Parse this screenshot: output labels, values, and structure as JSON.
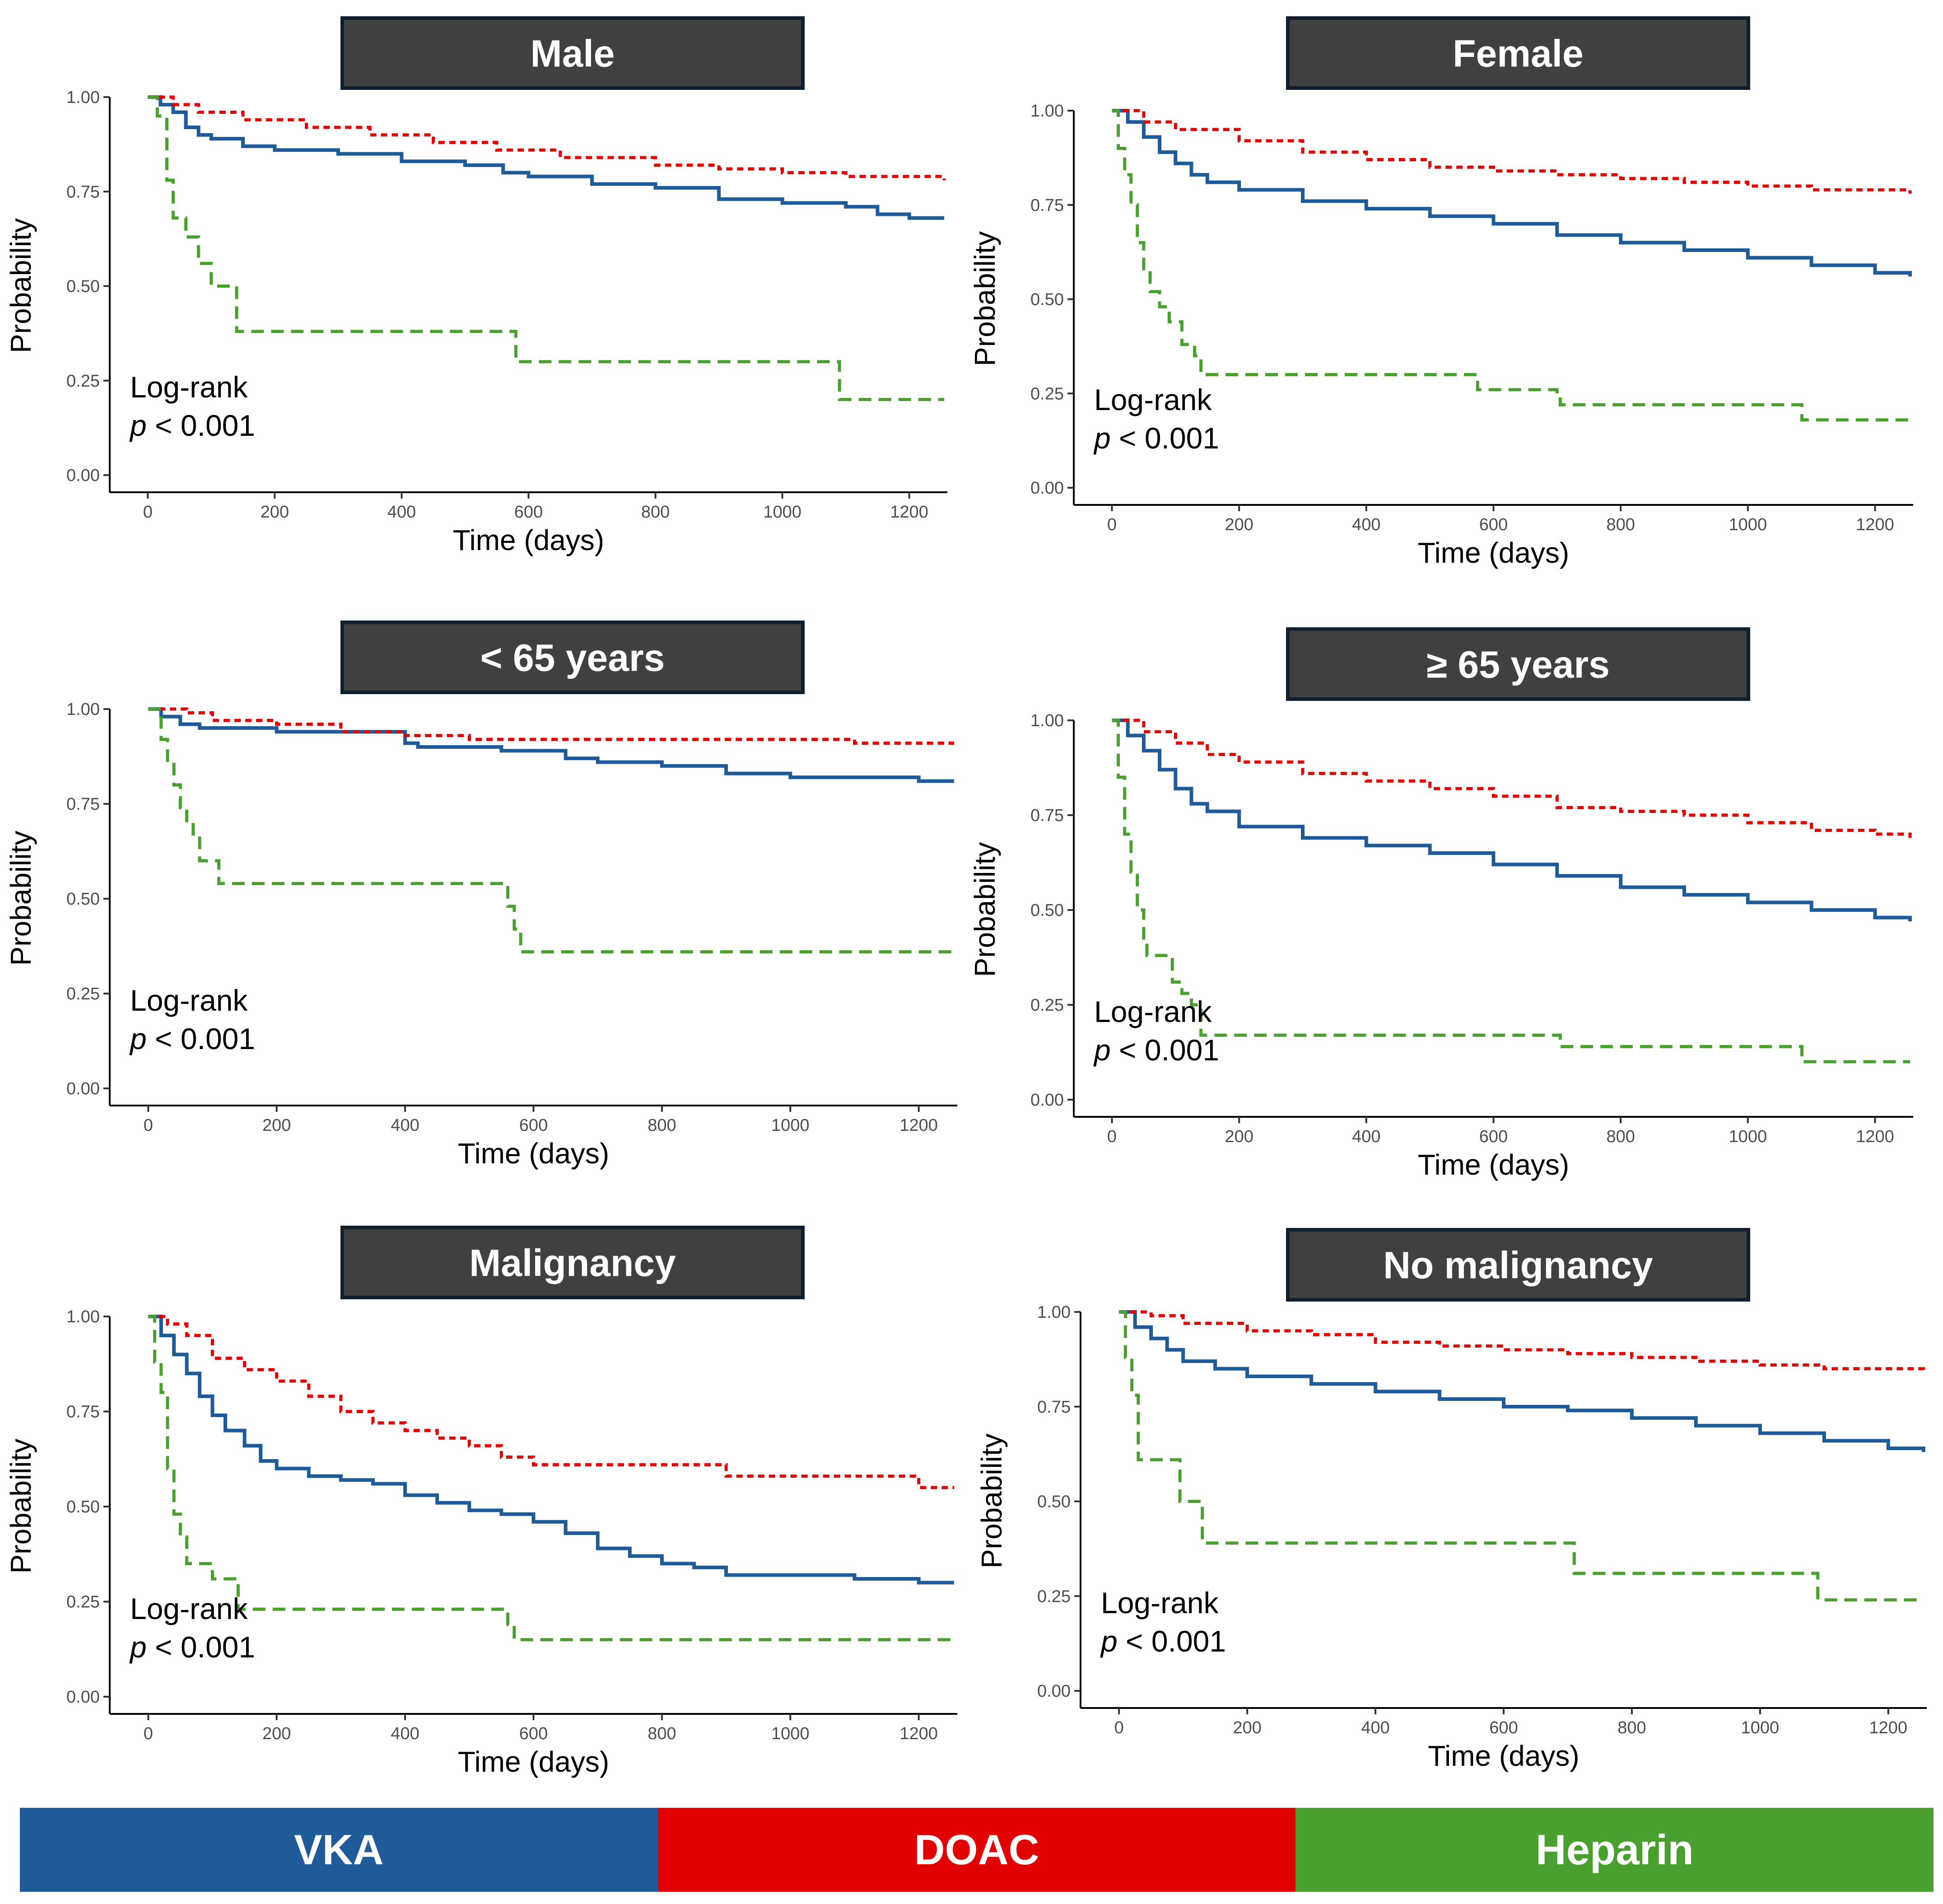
{
  "figure": {
    "legend": [
      {
        "label": "VKA",
        "color": "#1f5b99"
      },
      {
        "label": "DOAC",
        "color": "#e00000"
      },
      {
        "label": "Heparin",
        "color": "#4aa02f"
      }
    ]
  },
  "chart_data": [
    {
      "type": "line",
      "title": "Male",
      "xlabel": "Time (days)",
      "ylabel": "Probability",
      "xlim": [
        -60,
        1260
      ],
      "ylim": [
        0,
        1
      ],
      "x_ticks": [
        0,
        200,
        400,
        600,
        800,
        1000,
        1200
      ],
      "y_ticks": [
        0,
        0.25,
        0.5,
        0.75,
        1
      ],
      "y_tick_labels": [
        "0.00",
        "0.25",
        "0.50",
        "0.75",
        "1.00"
      ],
      "annotation": {
        "line1": "Log-rank",
        "p_symbol": "p",
        "p_rest": " < 0.001"
      },
      "series": [
        {
          "name": "VKA",
          "color": "#1f5b99",
          "dash": "solid",
          "x": [
            0,
            20,
            40,
            60,
            80,
            100,
            150,
            200,
            300,
            400,
            500,
            560,
            600,
            700,
            800,
            900,
            1000,
            1100,
            1150,
            1200,
            1255
          ],
          "y": [
            1.0,
            0.98,
            0.96,
            0.92,
            0.9,
            0.89,
            0.87,
            0.86,
            0.85,
            0.83,
            0.82,
            0.8,
            0.79,
            0.77,
            0.76,
            0.73,
            0.72,
            0.71,
            0.69,
            0.68,
            0.68
          ]
        },
        {
          "name": "DOAC",
          "color": "#e00000",
          "dash": "dotted",
          "x": [
            0,
            40,
            80,
            150,
            250,
            350,
            450,
            550,
            650,
            800,
            900,
            1000,
            1100,
            1255
          ],
          "y": [
            1.0,
            0.98,
            0.96,
            0.94,
            0.92,
            0.9,
            0.88,
            0.86,
            0.84,
            0.82,
            0.81,
            0.8,
            0.79,
            0.78
          ]
        },
        {
          "name": "Heparin",
          "color": "#4aa02f",
          "dash": "dashed",
          "x": [
            0,
            15,
            30,
            40,
            60,
            80,
            100,
            135,
            140,
            570,
            580,
            1080,
            1090,
            1255
          ],
          "y": [
            1.0,
            0.95,
            0.78,
            0.68,
            0.63,
            0.56,
            0.5,
            0.5,
            0.38,
            0.38,
            0.3,
            0.3,
            0.2,
            0.2
          ]
        }
      ]
    },
    {
      "type": "line",
      "title": "Female",
      "xlabel": "Time (days)",
      "ylabel": "Probability",
      "xlim": [
        -60,
        1260
      ],
      "ylim": [
        0,
        1
      ],
      "x_ticks": [
        0,
        200,
        400,
        600,
        800,
        1000,
        1200
      ],
      "y_ticks": [
        0,
        0.25,
        0.5,
        0.75,
        1
      ],
      "y_tick_labels": [
        "0.00",
        "0.25",
        "0.50",
        "0.75",
        "1.00"
      ],
      "annotation": {
        "line1": "Log-rank",
        "p_symbol": "p",
        "p_rest": " < 0.001"
      },
      "series": [
        {
          "name": "VKA",
          "color": "#1f5b99",
          "dash": "solid",
          "x": [
            0,
            25,
            50,
            75,
            100,
            125,
            150,
            200,
            300,
            400,
            500,
            600,
            700,
            800,
            900,
            1000,
            1100,
            1200,
            1255
          ],
          "y": [
            1.0,
            0.97,
            0.93,
            0.89,
            0.86,
            0.83,
            0.81,
            0.79,
            0.76,
            0.74,
            0.72,
            0.7,
            0.67,
            0.65,
            0.63,
            0.61,
            0.59,
            0.57,
            0.56
          ]
        },
        {
          "name": "DOAC",
          "color": "#e00000",
          "dash": "dotted",
          "x": [
            0,
            50,
            100,
            200,
            300,
            400,
            500,
            600,
            700,
            800,
            900,
            1000,
            1100,
            1255
          ],
          "y": [
            1.0,
            0.97,
            0.95,
            0.92,
            0.89,
            0.87,
            0.85,
            0.84,
            0.83,
            0.82,
            0.81,
            0.8,
            0.79,
            0.78
          ]
        },
        {
          "name": "Heparin",
          "color": "#4aa02f",
          "dash": "dashed",
          "x": [
            0,
            10,
            20,
            30,
            40,
            50,
            60,
            75,
            90,
            110,
            130,
            140,
            555,
            575,
            700,
            705,
            1080,
            1085,
            1255
          ],
          "y": [
            1.0,
            0.9,
            0.83,
            0.75,
            0.65,
            0.57,
            0.52,
            0.48,
            0.44,
            0.38,
            0.35,
            0.3,
            0.3,
            0.26,
            0.25,
            0.22,
            0.22,
            0.18,
            0.18
          ]
        }
      ]
    },
    {
      "type": "line",
      "title": "< 65 years",
      "xlabel": "Time (days)",
      "ylabel": "Probability",
      "xlim": [
        -60,
        1260
      ],
      "ylim": [
        0,
        1
      ],
      "x_ticks": [
        0,
        200,
        400,
        600,
        800,
        1000,
        1200
      ],
      "y_ticks": [
        0,
        0.25,
        0.5,
        0.75,
        1
      ],
      "y_tick_labels": [
        "0.00",
        "0.25",
        "0.50",
        "0.75",
        "1.00"
      ],
      "annotation": {
        "line1": "Log-rank",
        "p_symbol": "p",
        "p_rest": " < 0.001"
      },
      "series": [
        {
          "name": "VKA",
          "color": "#1f5b99",
          "dash": "solid",
          "x": [
            0,
            20,
            50,
            80,
            200,
            400,
            420,
            550,
            650,
            700,
            800,
            900,
            1000,
            1200,
            1255
          ],
          "y": [
            1.0,
            0.98,
            0.96,
            0.95,
            0.94,
            0.91,
            0.9,
            0.89,
            0.87,
            0.86,
            0.85,
            0.83,
            0.82,
            0.81,
            0.81
          ]
        },
        {
          "name": "DOAC",
          "color": "#e00000",
          "dash": "dotted",
          "x": [
            0,
            60,
            100,
            200,
            300,
            400,
            500,
            600,
            800,
            1000,
            1100,
            1255
          ],
          "y": [
            1.0,
            0.99,
            0.97,
            0.96,
            0.94,
            0.93,
            0.92,
            0.92,
            0.92,
            0.92,
            0.91,
            0.91
          ]
        },
        {
          "name": "Heparin",
          "color": "#4aa02f",
          "dash": "dashed",
          "x": [
            0,
            20,
            30,
            40,
            50,
            60,
            70,
            80,
            100,
            110,
            550,
            560,
            570,
            580,
            1255
          ],
          "y": [
            1.0,
            0.92,
            0.86,
            0.8,
            0.74,
            0.7,
            0.66,
            0.6,
            0.6,
            0.54,
            0.54,
            0.48,
            0.42,
            0.36,
            0.36
          ]
        }
      ]
    },
    {
      "type": "line",
      "title": "≥ 65 years",
      "xlabel": "Time (days)",
      "ylabel": "Probability",
      "xlim": [
        -60,
        1260
      ],
      "ylim": [
        0,
        1
      ],
      "x_ticks": [
        0,
        200,
        400,
        600,
        800,
        1000,
        1200
      ],
      "y_ticks": [
        0,
        0.25,
        0.5,
        0.75,
        1
      ],
      "y_tick_labels": [
        "0.00",
        "0.25",
        "0.50",
        "0.75",
        "1.00"
      ],
      "annotation": {
        "line1": "Log-rank",
        "p_symbol": "p",
        "p_rest": " < 0.001"
      },
      "series": [
        {
          "name": "VKA",
          "color": "#1f5b99",
          "dash": "solid",
          "x": [
            0,
            25,
            50,
            75,
            100,
            125,
            150,
            200,
            300,
            400,
            500,
            600,
            700,
            800,
            900,
            1000,
            1100,
            1200,
            1255
          ],
          "y": [
            1.0,
            0.96,
            0.92,
            0.87,
            0.82,
            0.78,
            0.76,
            0.72,
            0.69,
            0.67,
            0.65,
            0.62,
            0.59,
            0.56,
            0.54,
            0.52,
            0.5,
            0.48,
            0.47
          ]
        },
        {
          "name": "DOAC",
          "color": "#e00000",
          "dash": "dotted",
          "x": [
            0,
            50,
            100,
            150,
            200,
            300,
            400,
            500,
            600,
            700,
            800,
            900,
            1000,
            1100,
            1200,
            1255
          ],
          "y": [
            1.0,
            0.97,
            0.94,
            0.91,
            0.89,
            0.86,
            0.84,
            0.82,
            0.8,
            0.77,
            0.76,
            0.75,
            0.73,
            0.71,
            0.7,
            0.69
          ]
        },
        {
          "name": "Heparin",
          "color": "#4aa02f",
          "dash": "dashed",
          "x": [
            0,
            10,
            20,
            30,
            40,
            50,
            55,
            90,
            95,
            110,
            125,
            140,
            700,
            705,
            1080,
            1085,
            1255
          ],
          "y": [
            1.0,
            0.85,
            0.7,
            0.6,
            0.5,
            0.42,
            0.38,
            0.38,
            0.31,
            0.28,
            0.25,
            0.17,
            0.17,
            0.14,
            0.14,
            0.1,
            0.1
          ]
        }
      ]
    },
    {
      "type": "line",
      "title": "Malignancy",
      "xlabel": "Time (days)",
      "ylabel": "Probability",
      "xlim": [
        -60,
        1260
      ],
      "ylim": [
        0,
        1
      ],
      "x_ticks": [
        0,
        200,
        400,
        600,
        800,
        1000,
        1200
      ],
      "y_ticks": [
        0,
        0.25,
        0.5,
        0.75,
        1
      ],
      "y_tick_labels": [
        "0.00",
        "0.25",
        "0.50",
        "0.75",
        "1.00"
      ],
      "annotation": {
        "line1": "Log-rank",
        "p_symbol": "p",
        "p_rest": " < 0.001"
      },
      "series": [
        {
          "name": "VKA",
          "color": "#1f5b99",
          "dash": "solid",
          "x": [
            0,
            20,
            40,
            60,
            80,
            100,
            120,
            150,
            175,
            200,
            250,
            300,
            350,
            400,
            450,
            500,
            550,
            600,
            650,
            700,
            750,
            800,
            850,
            900,
            1000,
            1100,
            1200,
            1255
          ],
          "y": [
            1.0,
            0.95,
            0.9,
            0.85,
            0.79,
            0.74,
            0.7,
            0.66,
            0.62,
            0.6,
            0.58,
            0.57,
            0.56,
            0.53,
            0.51,
            0.49,
            0.48,
            0.46,
            0.43,
            0.39,
            0.37,
            0.35,
            0.34,
            0.32,
            0.32,
            0.31,
            0.3,
            0.3
          ]
        },
        {
          "name": "DOAC",
          "color": "#e00000",
          "dash": "dotted",
          "x": [
            0,
            30,
            60,
            100,
            150,
            200,
            250,
            300,
            350,
            400,
            450,
            500,
            550,
            600,
            700,
            800,
            900,
            1000,
            1200,
            1255
          ],
          "y": [
            1.0,
            0.98,
            0.95,
            0.89,
            0.86,
            0.83,
            0.79,
            0.75,
            0.72,
            0.7,
            0.68,
            0.66,
            0.63,
            0.61,
            0.61,
            0.61,
            0.58,
            0.58,
            0.55,
            0.55
          ]
        },
        {
          "name": "Heparin",
          "color": "#4aa02f",
          "dash": "dashed",
          "x": [
            0,
            10,
            20,
            30,
            40,
            50,
            60,
            80,
            100,
            130,
            140,
            550,
            560,
            570,
            1255
          ],
          "y": [
            1.0,
            0.88,
            0.8,
            0.6,
            0.48,
            0.42,
            0.35,
            0.35,
            0.31,
            0.31,
            0.23,
            0.23,
            0.19,
            0.15,
            0.15
          ]
        }
      ]
    },
    {
      "type": "line",
      "title": "No malignancy",
      "xlabel": "Time (days)",
      "ylabel": "Probability",
      "xlim": [
        -60,
        1260
      ],
      "ylim": [
        0,
        1
      ],
      "x_ticks": [
        0,
        200,
        400,
        600,
        800,
        1000,
        1200
      ],
      "y_ticks": [
        0,
        0.25,
        0.5,
        0.75,
        1
      ],
      "y_tick_labels": [
        "0.00",
        "0.25",
        "0.50",
        "0.75",
        "1.00"
      ],
      "annotation": {
        "line1": "Log-rank",
        "p_symbol": "p",
        "p_rest": " < 0.001"
      },
      "series": [
        {
          "name": "VKA",
          "color": "#1f5b99",
          "dash": "solid",
          "x": [
            0,
            25,
            50,
            75,
            100,
            150,
            200,
            300,
            400,
            500,
            600,
            700,
            800,
            900,
            1000,
            1100,
            1200,
            1255
          ],
          "y": [
            1.0,
            0.96,
            0.93,
            0.9,
            0.87,
            0.85,
            0.83,
            0.81,
            0.79,
            0.77,
            0.75,
            0.74,
            0.72,
            0.7,
            0.68,
            0.66,
            0.64,
            0.63
          ]
        },
        {
          "name": "DOAC",
          "color": "#e00000",
          "dash": "dotted",
          "x": [
            0,
            50,
            100,
            200,
            300,
            400,
            500,
            600,
            700,
            800,
            900,
            1000,
            1100,
            1255
          ],
          "y": [
            1.0,
            0.99,
            0.97,
            0.95,
            0.94,
            0.92,
            0.91,
            0.9,
            0.89,
            0.88,
            0.87,
            0.86,
            0.85,
            0.84
          ]
        },
        {
          "name": "Heparin",
          "color": "#4aa02f",
          "dash": "dashed",
          "x": [
            0,
            10,
            20,
            30,
            90,
            95,
            120,
            130,
            700,
            710,
            1080,
            1090,
            1255
          ],
          "y": [
            1.0,
            0.88,
            0.78,
            0.61,
            0.61,
            0.5,
            0.5,
            0.39,
            0.39,
            0.31,
            0.31,
            0.24,
            0.24
          ]
        }
      ]
    }
  ]
}
